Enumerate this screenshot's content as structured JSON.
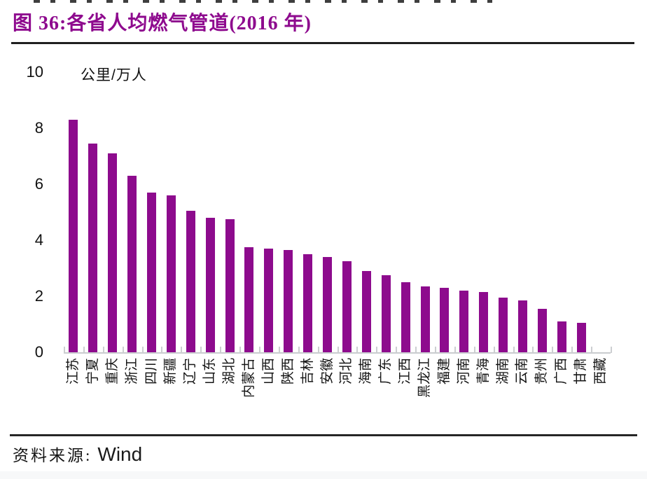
{
  "figure": {
    "title": "图 36:各省人均燃气管道(2016 年)",
    "source_label": "资料来源:",
    "source_value": "Wind"
  },
  "chart_data": {
    "type": "bar",
    "title": "各省人均燃气管道(2016 年)",
    "unit_label": "公里/万人",
    "categories": [
      "江苏",
      "宁夏",
      "重庆",
      "浙江",
      "四川",
      "新疆",
      "辽宁",
      "山东",
      "湖北",
      "内蒙古",
      "山西",
      "陕西",
      "吉林",
      "安徽",
      "河北",
      "海南",
      "广东",
      "江西",
      "黑龙江",
      "福建",
      "河南",
      "青海",
      "湖南",
      "云南",
      "贵州",
      "广西",
      "甘肃",
      "西藏"
    ],
    "values": [
      8.3,
      7.45,
      7.1,
      6.3,
      5.7,
      5.6,
      5.05,
      4.8,
      4.75,
      3.75,
      3.7,
      3.65,
      3.5,
      3.4,
      3.25,
      2.9,
      2.75,
      2.5,
      2.35,
      2.3,
      2.2,
      2.15,
      1.95,
      1.85,
      1.55,
      1.1,
      1.05,
      0
    ],
    "xlabel": "",
    "ylabel": "公里/万人",
    "ylim": [
      0,
      10
    ],
    "yticks": [
      0,
      2,
      4,
      6,
      8,
      10
    ],
    "grid": false,
    "legend_position": "none",
    "x_label_rotation_deg": 90,
    "bar_color": "#8d0b8d",
    "title_color": "#8e0a8e",
    "axis_color": "#c9cccf"
  }
}
